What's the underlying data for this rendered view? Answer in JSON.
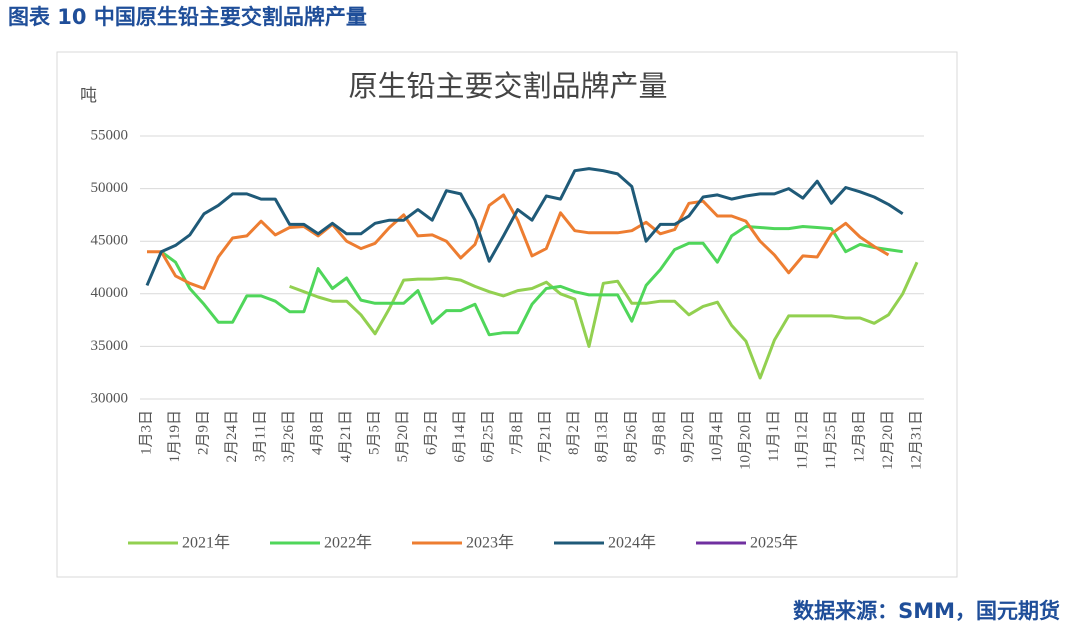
{
  "header": {
    "title": "图表 10 中国原生铅主要交割品牌产量"
  },
  "chart_data": {
    "type": "line",
    "title": "原生铅主要交割品牌产量",
    "y_label": "吨",
    "categories": [
      "1月3日",
      null,
      "1月19日",
      null,
      "2月9日",
      null,
      "2月24日",
      null,
      "3月11日",
      null,
      "3月26日",
      null,
      "4月8日",
      null,
      "4月21日",
      null,
      "5月5日",
      null,
      "5月20日",
      null,
      "6月2日",
      null,
      "6月14日",
      null,
      "6月25日",
      null,
      "7月8日",
      null,
      "7月21日",
      null,
      "8月2日",
      null,
      "8月13日",
      null,
      "8月26日",
      null,
      "9月8日",
      null,
      "9月20日",
      null,
      "10月4日",
      null,
      "10月20日",
      null,
      "11月1日",
      null,
      "11月12日",
      null,
      "11月25日",
      null,
      "12月8日",
      null,
      "12月20日",
      null,
      "12月31日"
    ],
    "ylim": [
      30000,
      55000
    ],
    "yticks": [
      30000,
      35000,
      40000,
      45000,
      50000,
      55000
    ],
    "grid": true,
    "legend": "bottom",
    "series": [
      {
        "name": "2021年",
        "color": "#92d050",
        "values": [
          null,
          null,
          null,
          null,
          null,
          null,
          null,
          null,
          null,
          null,
          40700,
          40200,
          39700,
          39300,
          39300,
          38000,
          36200,
          38600,
          41300,
          41400,
          41400,
          41500,
          41300,
          40700,
          40200,
          39800,
          40300,
          40500,
          41100,
          40000,
          39500,
          35000,
          41000,
          41200,
          39100,
          39100,
          39300,
          39300,
          38000,
          38800,
          39200,
          37000,
          35500,
          32000,
          35600,
          37900,
          37900,
          37900,
          37900,
          37700,
          37700,
          37200,
          38000,
          40000,
          43000
        ]
      },
      {
        "name": "2022年",
        "color": "#4fd65a",
        "values": [
          null,
          44000,
          43000,
          40500,
          39000,
          37300,
          37300,
          39800,
          39800,
          39300,
          38300,
          38300,
          42400,
          40500,
          41500,
          39400,
          39100,
          39100,
          39100,
          40300,
          37200,
          38400,
          38400,
          39000,
          36100,
          36300,
          36300,
          39000,
          40500,
          40700,
          40200,
          39900,
          39900,
          39900,
          37400,
          40800,
          42300,
          44200,
          44800,
          44800,
          43000,
          45500,
          46400,
          46300,
          46200,
          46200,
          46400,
          46300,
          46200,
          44000,
          44700,
          44400,
          44200,
          44000,
          null
        ]
      },
      {
        "name": "2023年",
        "color": "#ed7d31",
        "values": [
          44000,
          44000,
          41700,
          41000,
          40500,
          43500,
          45300,
          45500,
          46900,
          45600,
          46300,
          46400,
          45500,
          46600,
          45000,
          44300,
          44800,
          46300,
          47500,
          45500,
          45600,
          45000,
          43400,
          44700,
          48400,
          49400,
          47000,
          43600,
          44300,
          47700,
          46000,
          45800,
          45800,
          45800,
          46000,
          46800,
          45700,
          46100,
          48600,
          48800,
          47400,
          47400,
          46900,
          45000,
          43700,
          42000,
          43600,
          43500,
          45700,
          46700,
          45400,
          44500,
          43700,
          null,
          null
        ]
      },
      {
        "name": "2024年",
        "color": "#1f5a78",
        "values": [
          40800,
          44000,
          44600,
          45600,
          47600,
          48400,
          49500,
          49500,
          49000,
          49000,
          46600,
          46600,
          45700,
          46700,
          45700,
          45700,
          46700,
          47000,
          47000,
          48000,
          47000,
          49800,
          49500,
          47000,
          43100,
          45500,
          48000,
          47000,
          49300,
          49000,
          51700,
          51900,
          51700,
          51400,
          50200,
          45000,
          46600,
          46600,
          47400,
          49200,
          49400,
          49000,
          49300,
          49500,
          49500,
          50000,
          49100,
          50700,
          48600,
          50100,
          49700,
          49200,
          48500,
          47600,
          null
        ]
      },
      {
        "name": "2025年",
        "color": "#7030a0",
        "values": [
          null,
          null,
          null,
          null,
          null,
          null,
          null,
          null,
          null,
          null,
          null,
          null,
          null,
          null,
          null,
          null,
          null,
          null,
          null,
          null,
          null,
          null,
          null,
          null,
          null,
          null,
          null,
          null,
          null,
          null,
          null,
          null,
          null,
          null,
          null,
          null,
          null,
          null,
          null,
          null,
          null,
          null,
          null,
          null,
          null,
          null,
          null,
          null,
          null,
          null,
          null,
          null,
          null,
          null,
          null
        ]
      }
    ]
  },
  "footer": {
    "source": "数据来源：SMM，国元期货"
  }
}
